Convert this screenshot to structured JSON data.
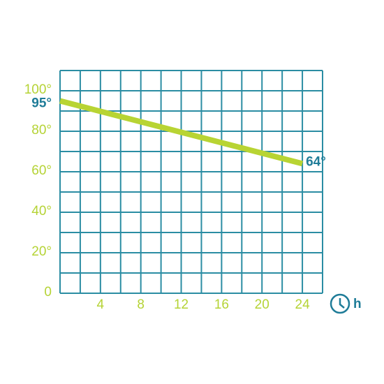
{
  "chart_data": {
    "type": "line",
    "x_label": "h",
    "x": [
      0,
      24
    ],
    "series": [
      {
        "color": "#b8d433",
        "values": [
          95,
          64
        ],
        "value_labels": [
          "95°",
          "64°"
        ],
        "label_color": "#1f7c98"
      }
    ],
    "xlim": [
      0,
      26
    ],
    "xticks": [
      4,
      8,
      12,
      16,
      20,
      24
    ],
    "x_minor_ticks": [
      2,
      6,
      10,
      14,
      18,
      22,
      26
    ],
    "ylim": [
      0,
      110
    ],
    "yticks": [
      {
        "value": 0,
        "label": "0"
      },
      {
        "value": 20,
        "label": "20°"
      },
      {
        "value": 40,
        "label": "40°"
      },
      {
        "value": 60,
        "label": "60°"
      },
      {
        "value": 80,
        "label": "80°"
      },
      {
        "value": 100,
        "label": "100°"
      }
    ],
    "y_minor_ticks": [
      10,
      30,
      50,
      70,
      90,
      110
    ],
    "grid": true,
    "grid_color": "#2b8da3",
    "tick_color": "#b5d335"
  }
}
